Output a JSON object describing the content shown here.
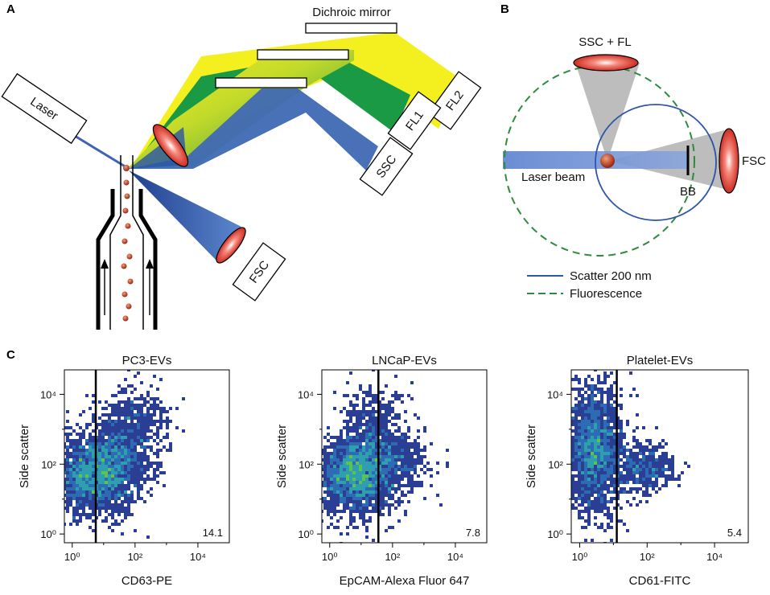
{
  "panels": {
    "a": "A",
    "b": "B",
    "c": "C"
  },
  "panel_a": {
    "laser": "Laser",
    "dichroic_mirror": "Dichroic mirror",
    "detectors": {
      "fl2": "FL2",
      "fl1": "FL1",
      "ssc": "SSC",
      "fsc": "FSC"
    }
  },
  "panel_b": {
    "ssc_fl": "SSC + FL",
    "fsc": "FSC",
    "laser_beam": "Laser beam",
    "bb": "BB",
    "legend": {
      "scatter": "Scatter 200 nm",
      "fluorescence": "Fluorescence"
    }
  },
  "colors": {
    "scatter": "#2e55a8",
    "fluorescence": "#2e8b3e",
    "fl2": "#f4ef1f",
    "fl1": "#1b9a46",
    "ssc": "#3f69b4",
    "lens": "#d92b1f"
  },
  "chart_data": [
    {
      "type": "scatter",
      "title": "PC3-EVs",
      "xlabel": "CD63-PE",
      "ylabel": "Side scatter",
      "xscale": "log",
      "yscale": "log",
      "xticks": [
        "10⁰",
        "10²",
        "10⁴"
      ],
      "yticks": [
        "10⁰",
        "10²",
        "10⁴"
      ],
      "gate_x_log": 0.75,
      "gate_value": "14.1",
      "density": [
        {
          "cx": 0.6,
          "cy": 1.7,
          "sx": 0.7,
          "sy": 0.55,
          "n": 2200
        },
        {
          "cx": 1.5,
          "cy": 2.3,
          "sx": 0.55,
          "sy": 0.7,
          "n": 900
        },
        {
          "cx": 2.2,
          "cy": 3.2,
          "sx": 0.5,
          "sy": 0.5,
          "n": 250
        }
      ]
    },
    {
      "type": "scatter",
      "title": "LNCaP-EVs",
      "xlabel": "EpCAM-Alexa Fluor 647",
      "ylabel": "Side scatter",
      "xscale": "log",
      "yscale": "log",
      "xticks": [
        "10⁰",
        "10²",
        "10⁴"
      ],
      "yticks": [
        "10⁰",
        "10²",
        "10⁴"
      ],
      "gate_x_log": 1.55,
      "gate_value": "7.8",
      "density": [
        {
          "cx": 0.8,
          "cy": 1.7,
          "sx": 0.6,
          "sy": 0.55,
          "n": 2200
        },
        {
          "cx": 1.4,
          "cy": 2.6,
          "sx": 0.5,
          "sy": 0.8,
          "n": 700
        },
        {
          "cx": 2.3,
          "cy": 2.1,
          "sx": 0.45,
          "sy": 0.45,
          "n": 350
        }
      ]
    },
    {
      "type": "scatter",
      "title": "Platelet-EVs",
      "xlabel": "CD61-FITC",
      "ylabel": "Side scatter",
      "xscale": "log",
      "yscale": "log",
      "xticks": [
        "10⁰",
        "10²",
        "10⁴"
      ],
      "yticks": [
        "10⁰",
        "10²",
        "10⁴"
      ],
      "gate_x_log": 1.1,
      "gate_value": "5.4",
      "density": [
        {
          "cx": 0.45,
          "cy": 2.4,
          "sx": 0.4,
          "sy": 0.9,
          "n": 2000
        },
        {
          "cx": 1.9,
          "cy": 1.9,
          "sx": 0.45,
          "sy": 0.35,
          "n": 500
        }
      ]
    }
  ]
}
